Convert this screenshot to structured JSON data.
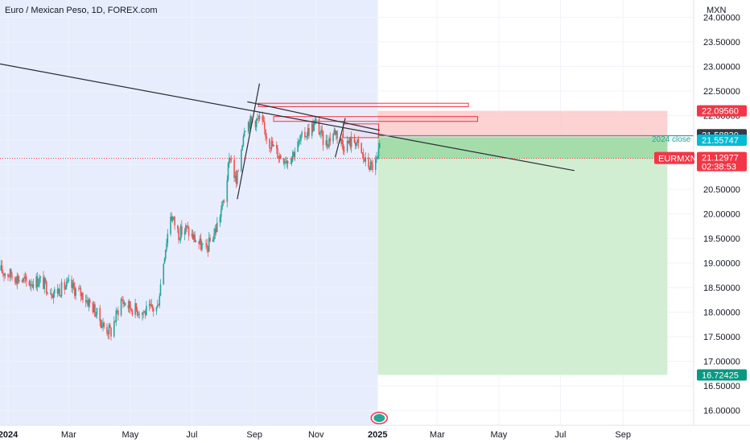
{
  "header": {
    "title": "Euro / Mexican Peso, 1D, FOREX.com"
  },
  "colors": {
    "up": "#26a69a",
    "down": "#ef5350",
    "highlight_bg": "#e8edfd",
    "stop_zone": "#fbcaca",
    "target_zone": "#cdeccd",
    "target_zone_active": "#98d8a0",
    "trend_line": "#2a2e39",
    "close_line": "#26a69a"
  },
  "chart_data": {
    "type": "candlestick",
    "title": "Euro / Mexican Peso, 1D, FOREX.com",
    "currency": "MXN",
    "ylim": [
      15.7,
      24.35
    ],
    "y_ticks": [
      16.0,
      16.5,
      17.0,
      17.5,
      18.0,
      18.5,
      19.0,
      19.5,
      20.0,
      20.5,
      21.0,
      21.5,
      22.0,
      22.5,
      23.0,
      23.5,
      24.0
    ],
    "y_tick_labels": [
      "16.00000",
      "16.50000",
      "17.00000",
      "17.50000",
      "18.00000",
      "18.50000",
      "19.00000",
      "19.50000",
      "20.00000",
      "20.50000",
      "21.00000",
      "21.50000",
      "22.00000",
      "22.50000",
      "23.00000",
      "23.50000",
      "24.00000"
    ],
    "x_range": [
      "2023-12-24",
      "2025-11-10"
    ],
    "x_ticks": [
      {
        "date": "2024-01-01",
        "label": "2024",
        "bold": true
      },
      {
        "date": "2024-03-01",
        "label": "Mar"
      },
      {
        "date": "2024-05-01",
        "label": "May"
      },
      {
        "date": "2024-07-01",
        "label": "Jul"
      },
      {
        "date": "2024-09-01",
        "label": "Sep"
      },
      {
        "date": "2024-11-01",
        "label": "Nov"
      },
      {
        "date": "2025-01-01",
        "label": "2025",
        "bold": true
      },
      {
        "date": "2025-03-01",
        "label": "Mar"
      },
      {
        "date": "2025-05-01",
        "label": "May"
      },
      {
        "date": "2025-07-01",
        "label": "Jul"
      },
      {
        "date": "2025-09-01",
        "label": "Sep"
      }
    ],
    "price_path": [
      [
        "2023-12-24",
        18.85
      ],
      [
        "2024-01-05",
        18.75
      ],
      [
        "2024-01-20",
        18.6
      ],
      [
        "2024-02-01",
        18.65
      ],
      [
        "2024-02-15",
        18.4
      ],
      [
        "2024-03-01",
        18.55
      ],
      [
        "2024-03-15",
        18.35
      ],
      [
        "2024-03-25",
        18.1
      ],
      [
        "2024-04-05",
        17.7
      ],
      [
        "2024-04-12",
        17.6
      ],
      [
        "2024-04-22",
        18.25
      ],
      [
        "2024-05-01",
        18.1
      ],
      [
        "2024-05-15",
        18.0
      ],
      [
        "2024-05-28",
        18.1
      ],
      [
        "2024-06-04",
        19.2
      ],
      [
        "2024-06-10",
        20.0
      ],
      [
        "2024-06-18",
        19.6
      ],
      [
        "2024-06-25",
        19.7
      ],
      [
        "2024-07-01",
        19.55
      ],
      [
        "2024-07-15",
        19.25
      ],
      [
        "2024-07-25",
        19.7
      ],
      [
        "2024-08-02",
        20.3
      ],
      [
        "2024-08-08",
        21.2
      ],
      [
        "2024-08-14",
        20.6
      ],
      [
        "2024-08-22",
        21.8
      ],
      [
        "2024-08-30",
        21.9
      ],
      [
        "2024-09-07",
        21.9
      ],
      [
        "2024-09-15",
        21.5
      ],
      [
        "2024-09-25",
        21.2
      ],
      [
        "2024-10-05",
        21.1
      ],
      [
        "2024-10-20",
        21.6
      ],
      [
        "2024-11-01",
        21.85
      ],
      [
        "2024-11-10",
        21.4
      ],
      [
        "2024-11-20",
        21.7
      ],
      [
        "2024-11-28",
        21.4
      ],
      [
        "2024-12-10",
        21.5
      ],
      [
        "2024-12-20",
        21.05
      ],
      [
        "2024-12-26",
        20.95
      ],
      [
        "2025-01-01",
        21.1
      ],
      [
        "2025-01-05",
        21.55
      ]
    ],
    "annotations": {
      "highlight_period": [
        "2023-12-24",
        "2025-01-01"
      ],
      "trend_lines": [
        {
          "from": [
            "2023-12-24",
            23.05
          ],
          "to": [
            "2025-07-15",
            20.88
          ]
        },
        {
          "from": [
            "2024-08-15",
            20.3
          ],
          "to": [
            "2024-09-06",
            22.65
          ]
        },
        {
          "from": [
            "2024-11-20",
            21.15
          ],
          "to": [
            "2024-11-30",
            21.95
          ]
        },
        {
          "from": [
            "2024-08-25",
            22.28
          ],
          "to": [
            "2025-01-03",
            21.7
          ]
        }
      ],
      "boxes": [
        {
          "from": [
            "2024-09-05",
            22.25
          ],
          "to": [
            "2025-04-01",
            22.18
          ]
        },
        {
          "from": [
            "2024-09-20",
            21.98
          ],
          "to": [
            "2025-04-10",
            21.88
          ]
        },
        {
          "from": [
            "2024-11-28",
            21.83
          ],
          "to": [
            "2025-01-02",
            21.55
          ]
        }
      ],
      "position": {
        "start": "2025-01-01",
        "end": "2025-10-15",
        "entry": 21.55747,
        "stop": 22.0956,
        "target": 16.72425,
        "current": 21.12977
      },
      "close_label": "2024 close",
      "close_line_value": 21.59
    },
    "price_tags": [
      {
        "label": "22.09560",
        "value": 22.0956,
        "color": "#f23645"
      },
      {
        "label": "21.58830",
        "value": 21.61,
        "color": "#363a45"
      },
      {
        "label": "21.55747",
        "value": 21.5,
        "color": "#00bcd4"
      },
      {
        "label": "16.72425",
        "value": 16.72425,
        "color": "#089981"
      }
    ],
    "symbol_tag": {
      "symbol": "EURMXN",
      "price": "21.12977",
      "countdown": "02:38:53",
      "value": 21.12977,
      "color": "#f23645"
    }
  }
}
